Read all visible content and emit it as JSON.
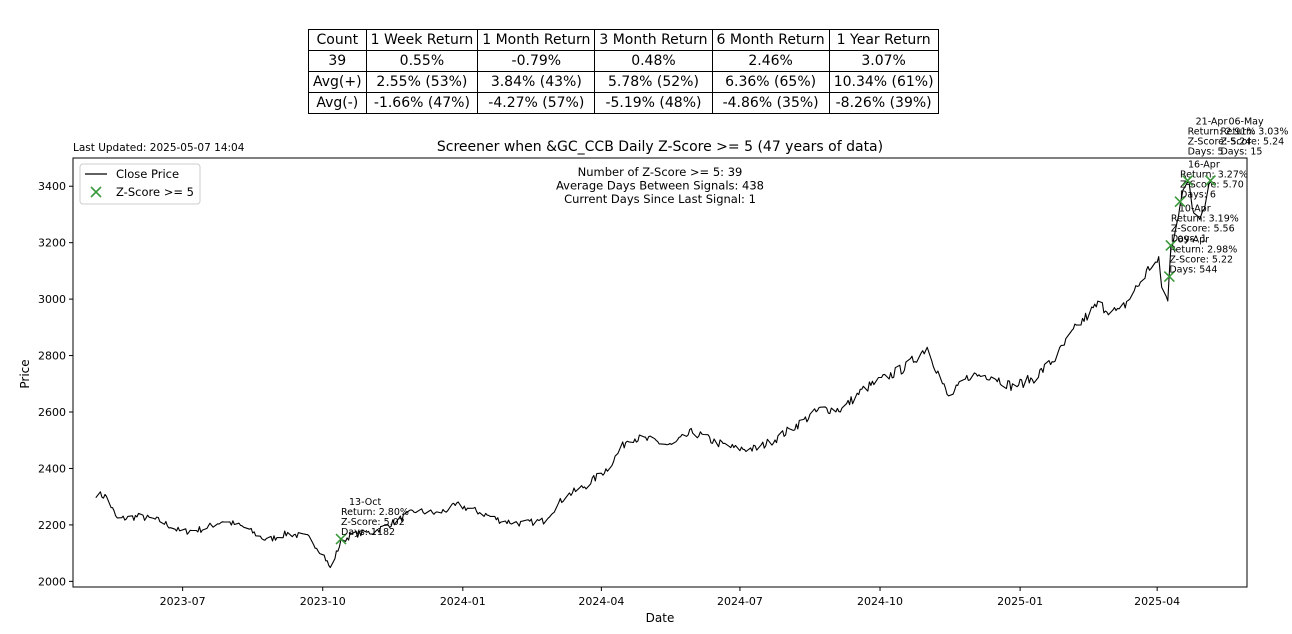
{
  "stats_table": {
    "header": [
      "Count",
      "1 Week Return",
      "1 Month Return",
      "3 Month Return",
      "6 Month Return",
      "1 Year Return"
    ],
    "rows": [
      [
        "39",
        "0.55%",
        "-0.79%",
        "0.48%",
        "2.46%",
        "3.07%"
      ],
      [
        "Avg(+)",
        "2.55% (53%)",
        "3.84% (43%)",
        "5.78% (52%)",
        "6.36% (65%)",
        "10.34% (61%)"
      ],
      [
        "Avg(-)",
        "-1.66% (47%)",
        "-4.27% (57%)",
        "-5.19% (48%)",
        "-4.86% (35%)",
        "-8.26% (39%)"
      ]
    ]
  },
  "last_updated": "Last Updated: 2025-05-07 14:04",
  "chart_data": {
    "type": "line",
    "title": "Screener when &GC_CCB Daily Z-Score >= 5 (47 years of data)",
    "xlabel": "Date",
    "ylabel": "Price",
    "ylim": [
      1980,
      3500
    ],
    "xlim": [
      "2023-04-20",
      "2025-05-30"
    ],
    "x_ticks": [
      "2023-07",
      "2023-10",
      "2024-01",
      "2024-04",
      "2024-07",
      "2024-10",
      "2025-01",
      "2025-04"
    ],
    "y_ticks": [
      2000,
      2200,
      2400,
      2600,
      2800,
      3000,
      3200,
      3400
    ],
    "legend": {
      "position": "top-left",
      "entries": [
        "Close Price",
        "Z-Score >= 5"
      ]
    },
    "stats_text": [
      "Number of Z-Score >= 5: 39",
      "Average Days Between Signals: 438",
      "Current Days Since Last Signal: 1"
    ],
    "series": [
      {
        "name": "Close Price",
        "color": "#000000",
        "anchors": [
          [
            "2023-05-05",
            2310
          ],
          [
            "2023-05-12",
            2300
          ],
          [
            "2023-05-19",
            2220
          ],
          [
            "2023-06-02",
            2230
          ],
          [
            "2023-06-16",
            2215
          ],
          [
            "2023-06-30",
            2175
          ],
          [
            "2023-07-14",
            2185
          ],
          [
            "2023-07-28",
            2215
          ],
          [
            "2023-08-11",
            2190
          ],
          [
            "2023-08-25",
            2145
          ],
          [
            "2023-09-08",
            2170
          ],
          [
            "2023-09-22",
            2155
          ],
          [
            "2023-10-02",
            2090
          ],
          [
            "2023-10-06",
            2045
          ],
          [
            "2023-10-13",
            2140
          ],
          [
            "2023-10-20",
            2165
          ],
          [
            "2023-11-03",
            2175
          ],
          [
            "2023-11-17",
            2210
          ],
          [
            "2023-12-01",
            2250
          ],
          [
            "2023-12-15",
            2240
          ],
          [
            "2023-12-29",
            2270
          ],
          [
            "2024-01-12",
            2245
          ],
          [
            "2024-01-26",
            2215
          ],
          [
            "2024-02-09",
            2205
          ],
          [
            "2024-02-23",
            2215
          ],
          [
            "2024-03-08",
            2300
          ],
          [
            "2024-03-22",
            2340
          ],
          [
            "2024-04-05",
            2400
          ],
          [
            "2024-04-19",
            2510
          ],
          [
            "2024-05-03",
            2500
          ],
          [
            "2024-05-17",
            2480
          ],
          [
            "2024-05-31",
            2530
          ],
          [
            "2024-06-14",
            2495
          ],
          [
            "2024-06-28",
            2470
          ],
          [
            "2024-07-12",
            2470
          ],
          [
            "2024-07-26",
            2510
          ],
          [
            "2024-08-09",
            2560
          ],
          [
            "2024-08-23",
            2610
          ],
          [
            "2024-09-06",
            2610
          ],
          [
            "2024-09-20",
            2680
          ],
          [
            "2024-10-04",
            2720
          ],
          [
            "2024-10-18",
            2760
          ],
          [
            "2024-11-01",
            2830
          ],
          [
            "2024-11-15",
            2650
          ],
          [
            "2024-11-29",
            2730
          ],
          [
            "2024-12-13",
            2730
          ],
          [
            "2024-12-27",
            2690
          ],
          [
            "2025-01-10",
            2720
          ],
          [
            "2025-01-24",
            2790
          ],
          [
            "2025-02-07",
            2900
          ],
          [
            "2025-02-21",
            2980
          ],
          [
            "2025-03-07",
            2950
          ],
          [
            "2025-03-21",
            3060
          ],
          [
            "2025-03-28",
            3120
          ],
          [
            "2025-04-02",
            3130
          ],
          [
            "2025-04-04",
            3050
          ],
          [
            "2025-04-08",
            2990
          ],
          [
            "2025-04-10",
            3180
          ],
          [
            "2025-04-16",
            3340
          ],
          [
            "2025-04-22",
            3420
          ],
          [
            "2025-04-24",
            3330
          ],
          [
            "2025-04-30",
            3300
          ],
          [
            "2025-05-06",
            3420
          ]
        ]
      },
      {
        "name": "Z-Score >= 5",
        "color": "#3a9a3a",
        "points": [
          {
            "date": "2023-10-13",
            "price": 2150,
            "label": [
              "13-Oct",
              "Return: 2.80%",
              "Z-Score: 5.02",
              "Days: 1182"
            ]
          },
          {
            "date": "2025-04-09",
            "price": 3080,
            "label": [
              "09-Apr",
              "Return: 2.98%",
              "Z-Score: 5.22",
              "Days: 544"
            ]
          },
          {
            "date": "2025-04-10",
            "price": 3190,
            "label": [
              "10-Apr",
              "Return: 3.19%",
              "Z-Score: 5.56",
              "Days: 1"
            ]
          },
          {
            "date": "2025-04-16",
            "price": 3345,
            "label": [
              "16-Apr",
              "Return: 3.27%",
              "Z-Score: 5.70",
              "Days: 6"
            ]
          },
          {
            "date": "2025-04-21",
            "price": 3420,
            "label": [
              "21-Apr",
              "Return: 2.91%",
              "Z-Score: 5.24",
              "Days: 5"
            ]
          },
          {
            "date": "2025-05-06",
            "price": 3420,
            "label": [
              "06-May",
              "Return: 3.03%",
              "Z-Score: 5.24",
              "Days: 15"
            ]
          }
        ]
      }
    ]
  }
}
